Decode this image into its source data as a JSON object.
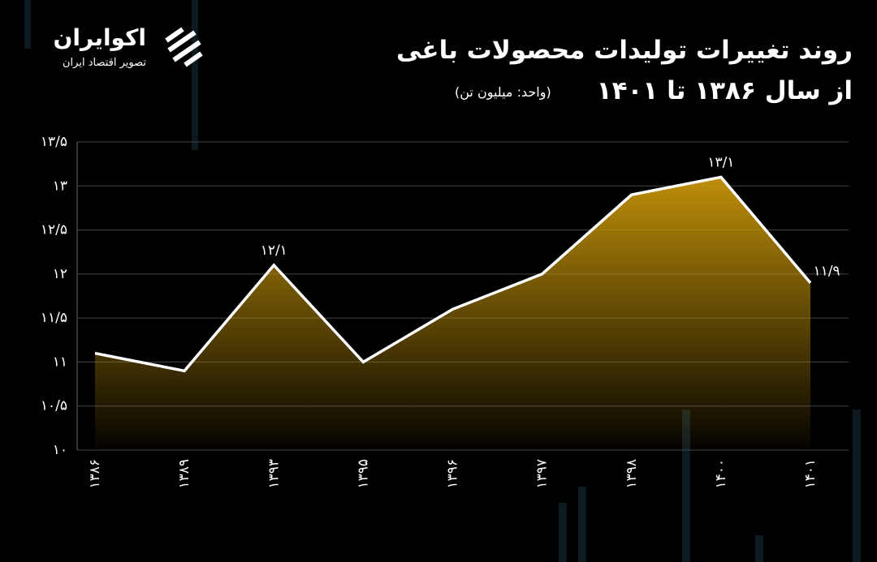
{
  "brand": {
    "name": "اکوایران",
    "tagline": "تصویر اقتصاد ایران"
  },
  "chart_data": {
    "type": "area-line",
    "title": "روند تغییرات تولیدات محصولات باغی",
    "subtitle": "از سال ۱۳۸۶ تا ۱۴۰۱",
    "unit": "(واحد: میلیون تن)",
    "categories": [
      "۱۳۸۶",
      "۱۳۸۹",
      "۱۳۹۳",
      "۱۳۹۵",
      "۱۳۹۶",
      "۱۳۹۷",
      "۱۳۹۸",
      "۱۴۰۰",
      "۱۴۰۱"
    ],
    "values": [
      11.1,
      10.9,
      12.1,
      11.0,
      11.6,
      12.0,
      12.9,
      13.1,
      11.9
    ],
    "value_labels": [
      null,
      null,
      "۱۲/۱",
      null,
      null,
      null,
      null,
      "۱۳/۱",
      "۱۱/۹"
    ],
    "color": "#ffffff",
    "fill_color": "#c8960a",
    "ylim": [
      10,
      13.5
    ],
    "yticks": [
      {
        "value": 10,
        "label": "۱۰"
      },
      {
        "value": 10.5,
        "label": "۱۰/۵"
      },
      {
        "value": 11,
        "label": "۱۱"
      },
      {
        "value": 11.5,
        "label": "۱۱/۵"
      },
      {
        "value": 12,
        "label": "۱۲"
      },
      {
        "value": 12.5,
        "label": "۱۲/۵"
      },
      {
        "value": 13,
        "label": "۱۳"
      },
      {
        "value": 13.5,
        "label": "۱۳/۵"
      }
    ],
    "grid": true
  }
}
